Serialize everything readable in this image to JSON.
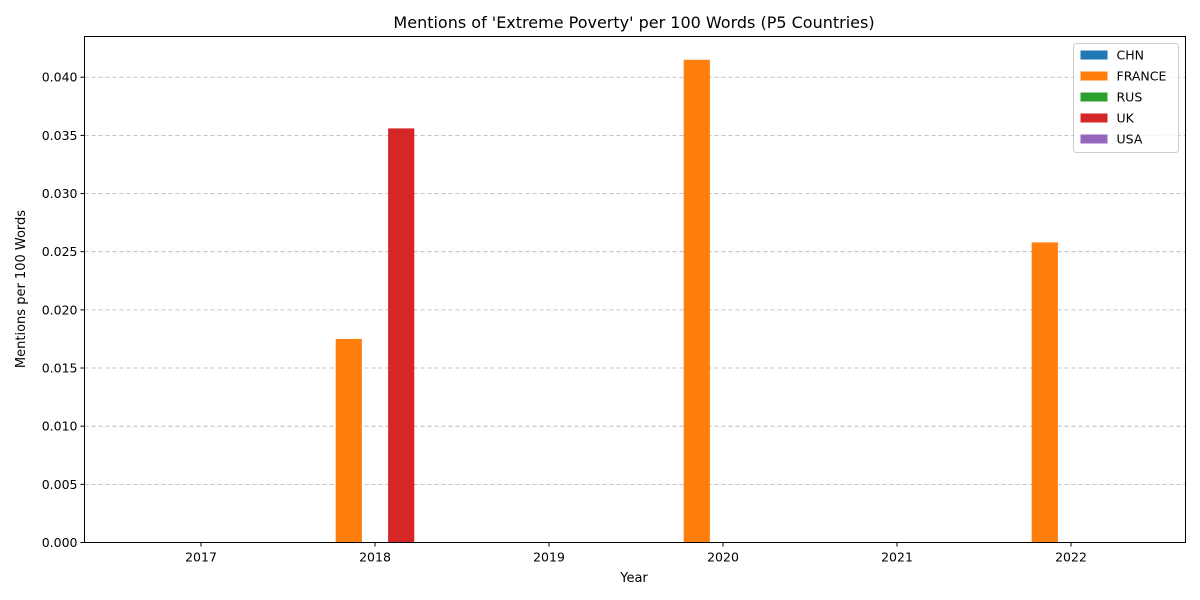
{
  "chart_data": {
    "type": "bar",
    "title": "Mentions of 'Extreme Poverty' per 100 Words (P5 Countries)",
    "xlabel": "Year",
    "ylabel": "Mentions per 100 Words",
    "categories": [
      "2017",
      "2018",
      "2019",
      "2020",
      "2021",
      "2022"
    ],
    "ylim": [
      0,
      0.0435
    ],
    "yticks": [
      "0.000",
      "0.005",
      "0.010",
      "0.015",
      "0.020",
      "0.025",
      "0.030",
      "0.035",
      "0.040"
    ],
    "grid": "horizontal dashed",
    "legend_position": "top-right",
    "series": [
      {
        "name": "CHN",
        "color": "#1f77b4",
        "values": [
          0,
          0,
          0,
          0,
          0,
          0
        ]
      },
      {
        "name": "FRANCE",
        "color": "#ff7f0e",
        "values": [
          0,
          0.0175,
          0,
          0.0415,
          0,
          0.0258
        ]
      },
      {
        "name": "RUS",
        "color": "#2ca02c",
        "values": [
          0,
          0,
          0,
          0,
          0,
          0
        ]
      },
      {
        "name": "UK",
        "color": "#d62728",
        "values": [
          0,
          0.0356,
          0,
          0,
          0,
          0
        ]
      },
      {
        "name": "USA",
        "color": "#9467bd",
        "values": [
          0,
          0,
          0,
          0,
          0,
          0
        ]
      }
    ]
  }
}
